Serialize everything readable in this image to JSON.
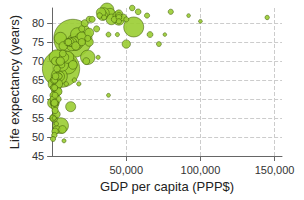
{
  "chart_data": {
    "type": "bubble",
    "x_label": "GDP per capita (PPP$)",
    "y_label": "Life expectancy (years)",
    "color": "#9acd32",
    "x": [
      14000,
      6000,
      55000,
      10500,
      15500,
      4800,
      5700,
      3100,
      24000,
      37000,
      17000,
      6800,
      1500,
      5600,
      10500,
      45000,
      17000,
      19500,
      750,
      15000,
      39000,
      40000,
      35000,
      12500,
      5000,
      2600,
      34000,
      13000,
      2900,
      33000,
      20000,
      8000,
      13500,
      4000,
      1700,
      25000,
      14000,
      44000,
      7500,
      50000,
      1900,
      12000,
      25000,
      16000,
      2300,
      4000,
      1100,
      45000,
      2900,
      3200,
      1400,
      7000,
      10500,
      900,
      22000,
      1700,
      48000,
      1100,
      23000,
      3800,
      2000,
      1800,
      3300,
      600,
      1500,
      600,
      2800,
      8000,
      1400,
      38000,
      64000,
      58000,
      80000,
      145000,
      92000,
      72000,
      66000,
      76000,
      50000,
      100000,
      45000,
      42000,
      45000,
      45000,
      54000,
      25000,
      27000,
      30000,
      24000,
      38000,
      44000,
      32000,
      35000,
      20000,
      1700,
      6500,
      7200,
      11000,
      5000,
      3800,
      5500,
      20000,
      5000,
      700,
      1700,
      2000,
      1200,
      1600,
      2300,
      2000,
      15000,
      18000,
      9500,
      31000
    ],
    "values": [
      76,
      68,
      79,
      69,
      75,
      66,
      53,
      71,
      71,
      83.5,
      77,
      69,
      64,
      76,
      71,
      81,
      75,
      76,
      59,
      75,
      82.5,
      81,
      82.7,
      58,
      66,
      63,
      82,
      74,
      62,
      82.8,
      76.5,
      71,
      75,
      64,
      59,
      77.5,
      69,
      82,
      74,
      74.5,
      61,
      75,
      75,
      74,
      70,
      62,
      55,
      82.5,
      56,
      52,
      65,
      52,
      75,
      61,
      80,
      58,
      81.5,
      63,
      70,
      60,
      51.5,
      59,
      68,
      55,
      50.5,
      49.5,
      53.5,
      49,
      55,
      61,
      82,
      83,
      83,
      81.5,
      82,
      74.5,
      77,
      77,
      81,
      80.5,
      82,
      81,
      81.5,
      80.5,
      84,
      81,
      81,
      78.5,
      76,
      77,
      77,
      82,
      81.5,
      78.5,
      63,
      69,
      72,
      75,
      70,
      66,
      70,
      75,
      66,
      60,
      65,
      61,
      59,
      59,
      66,
      57,
      65,
      64,
      64,
      71
    ],
    "sizes": [
      1370,
      1300,
      320,
      255,
      205,
      190,
      180,
      160,
      144,
      127,
      125,
      100,
      98,
      92,
      90,
      81,
      79,
      78,
      75,
      68,
      66,
      65,
      60,
      55,
      53,
      52,
      51,
      48,
      46,
      46,
      43,
      45,
      40,
      40,
      39,
      38,
      36,
      36,
      34,
      31,
      32,
      31,
      30,
      31,
      28,
      27,
      28,
      24,
      23,
      23,
      24,
      25,
      21,
      19,
      18,
      17,
      17,
      17,
      17,
      16,
      14,
      15,
      15,
      11,
      7,
      5,
      2,
      1.3,
      1.8,
      0.8,
      5.2,
      8.3,
      5.5,
      2.2,
      0.55,
      3.9,
      9,
      0.4,
      4.6,
      0.6,
      9.8,
      11,
      8.6,
      5.7,
      7.3,
      11,
      10,
      10.5,
      9.8,
      4,
      1.4,
      8,
      4.5,
      11,
      10.7,
      10.7,
      16,
      16,
      18,
      27,
      30,
      20,
      7,
      11,
      11,
      10.5,
      12,
      18,
      15,
      12,
      2.2,
      1.8,
      2.4,
      1.4
    ],
    "xlim": [
      0,
      155000
    ],
    "xticks": [
      {
        "value": 50000,
        "label": "50,000"
      },
      {
        "value": 100000,
        "label": "100,000"
      },
      {
        "value": 150000,
        "label": "150,000"
      }
    ],
    "ylim": [
      45,
      84
    ],
    "yticks": [
      45,
      50,
      55,
      60,
      65,
      70,
      75,
      80
    ],
    "grid": true
  }
}
